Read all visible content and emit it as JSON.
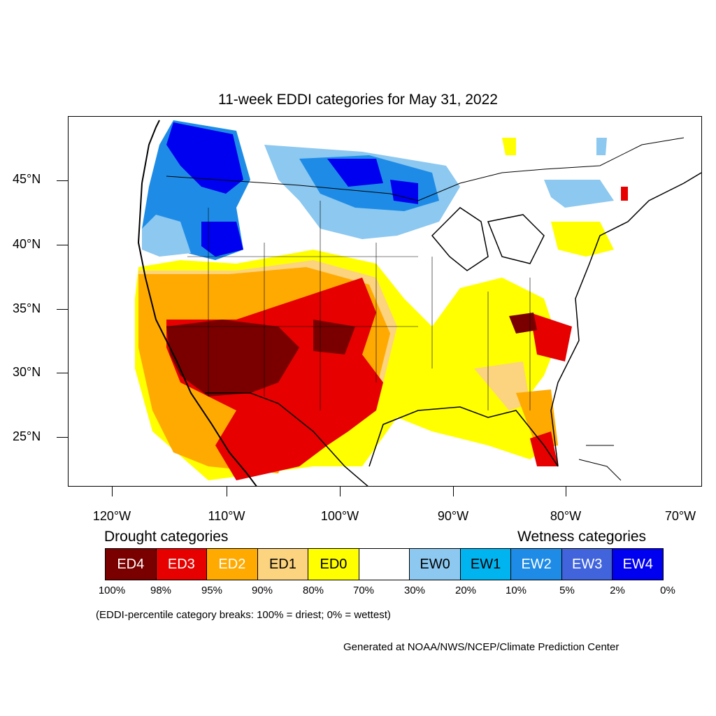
{
  "title": "11-week EDDI categories for May 31, 2022",
  "latitude_labels": [
    "45°N",
    "40°N",
    "35°N",
    "30°N",
    "25°N"
  ],
  "longitude_labels": [
    "120°W",
    "110°W",
    "100°W",
    "90°W",
    "80°W",
    "70°W"
  ],
  "legend": {
    "drought_heading": "Drought categories",
    "wetness_heading": "Wetness categories",
    "categories": [
      {
        "label": "ED4",
        "color": "#7a0000",
        "text_color": "#ffffff"
      },
      {
        "label": "ED3",
        "color": "#e60000",
        "text_color": "#ffffff"
      },
      {
        "label": "ED2",
        "color": "#ffaa00",
        "text_color": "#ffffff"
      },
      {
        "label": "ED1",
        "color": "#fcd37f",
        "text_color": "#000000"
      },
      {
        "label": "ED0",
        "color": "#ffff00",
        "text_color": "#000000"
      },
      {
        "label": "",
        "color": "#ffffff",
        "text_color": "#000000"
      },
      {
        "label": "EW0",
        "color": "#8cc8f0",
        "text_color": "#000000"
      },
      {
        "label": "EW1",
        "color": "#00b4f0",
        "text_color": "#000000"
      },
      {
        "label": "EW2",
        "color": "#1e8ce6",
        "text_color": "#ffffff"
      },
      {
        "label": "EW3",
        "color": "#4164dc",
        "text_color": "#ffffff"
      },
      {
        "label": "EW4",
        "color": "#0000f0",
        "text_color": "#ffffff"
      }
    ],
    "percentile_breaks": [
      "100%",
      "98%",
      "95%",
      "90%",
      "80%",
      "70%",
      "30%",
      "20%",
      "10%",
      "5%",
      "2%",
      "0%"
    ]
  },
  "note": "(EDDI-percentile category breaks: 100% = driest; 0% = wettest)",
  "credit": "Generated at NOAA/NWS/NCEP/Climate Prediction Center"
}
